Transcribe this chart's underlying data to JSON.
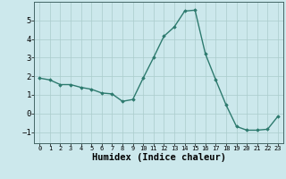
{
  "x": [
    0,
    1,
    2,
    3,
    4,
    5,
    6,
    7,
    8,
    9,
    10,
    11,
    12,
    13,
    14,
    15,
    16,
    17,
    18,
    19,
    20,
    21,
    22,
    23
  ],
  "y": [
    1.9,
    1.8,
    1.55,
    1.55,
    1.4,
    1.3,
    1.1,
    1.05,
    0.65,
    0.75,
    1.9,
    3.0,
    4.15,
    4.65,
    5.5,
    5.55,
    3.2,
    1.8,
    0.45,
    -0.7,
    -0.9,
    -0.9,
    -0.85,
    -0.15
  ],
  "line_color": "#2d7a6e",
  "marker": "D",
  "marker_size": 1.8,
  "linewidth": 1.0,
  "bg_color": "#cce8ec",
  "grid_color": "#aacccc",
  "xlabel": "Humidex (Indice chaleur)",
  "xlabel_fontsize": 7.5,
  "ylim": [
    -1.6,
    6.0
  ],
  "xlim": [
    -0.5,
    23.5
  ],
  "yticks": [
    -1,
    0,
    1,
    2,
    3,
    4,
    5
  ],
  "ytick_fontsize": 6.5,
  "xtick_fontsize": 5.0,
  "xtick_labels": [
    "0",
    "1",
    "2",
    "3",
    "4",
    "5",
    "6",
    "7",
    "8",
    "9",
    "10",
    "11",
    "12",
    "13",
    "14",
    "15",
    "16",
    "17",
    "18",
    "19",
    "20",
    "21",
    "22",
    "23"
  ]
}
